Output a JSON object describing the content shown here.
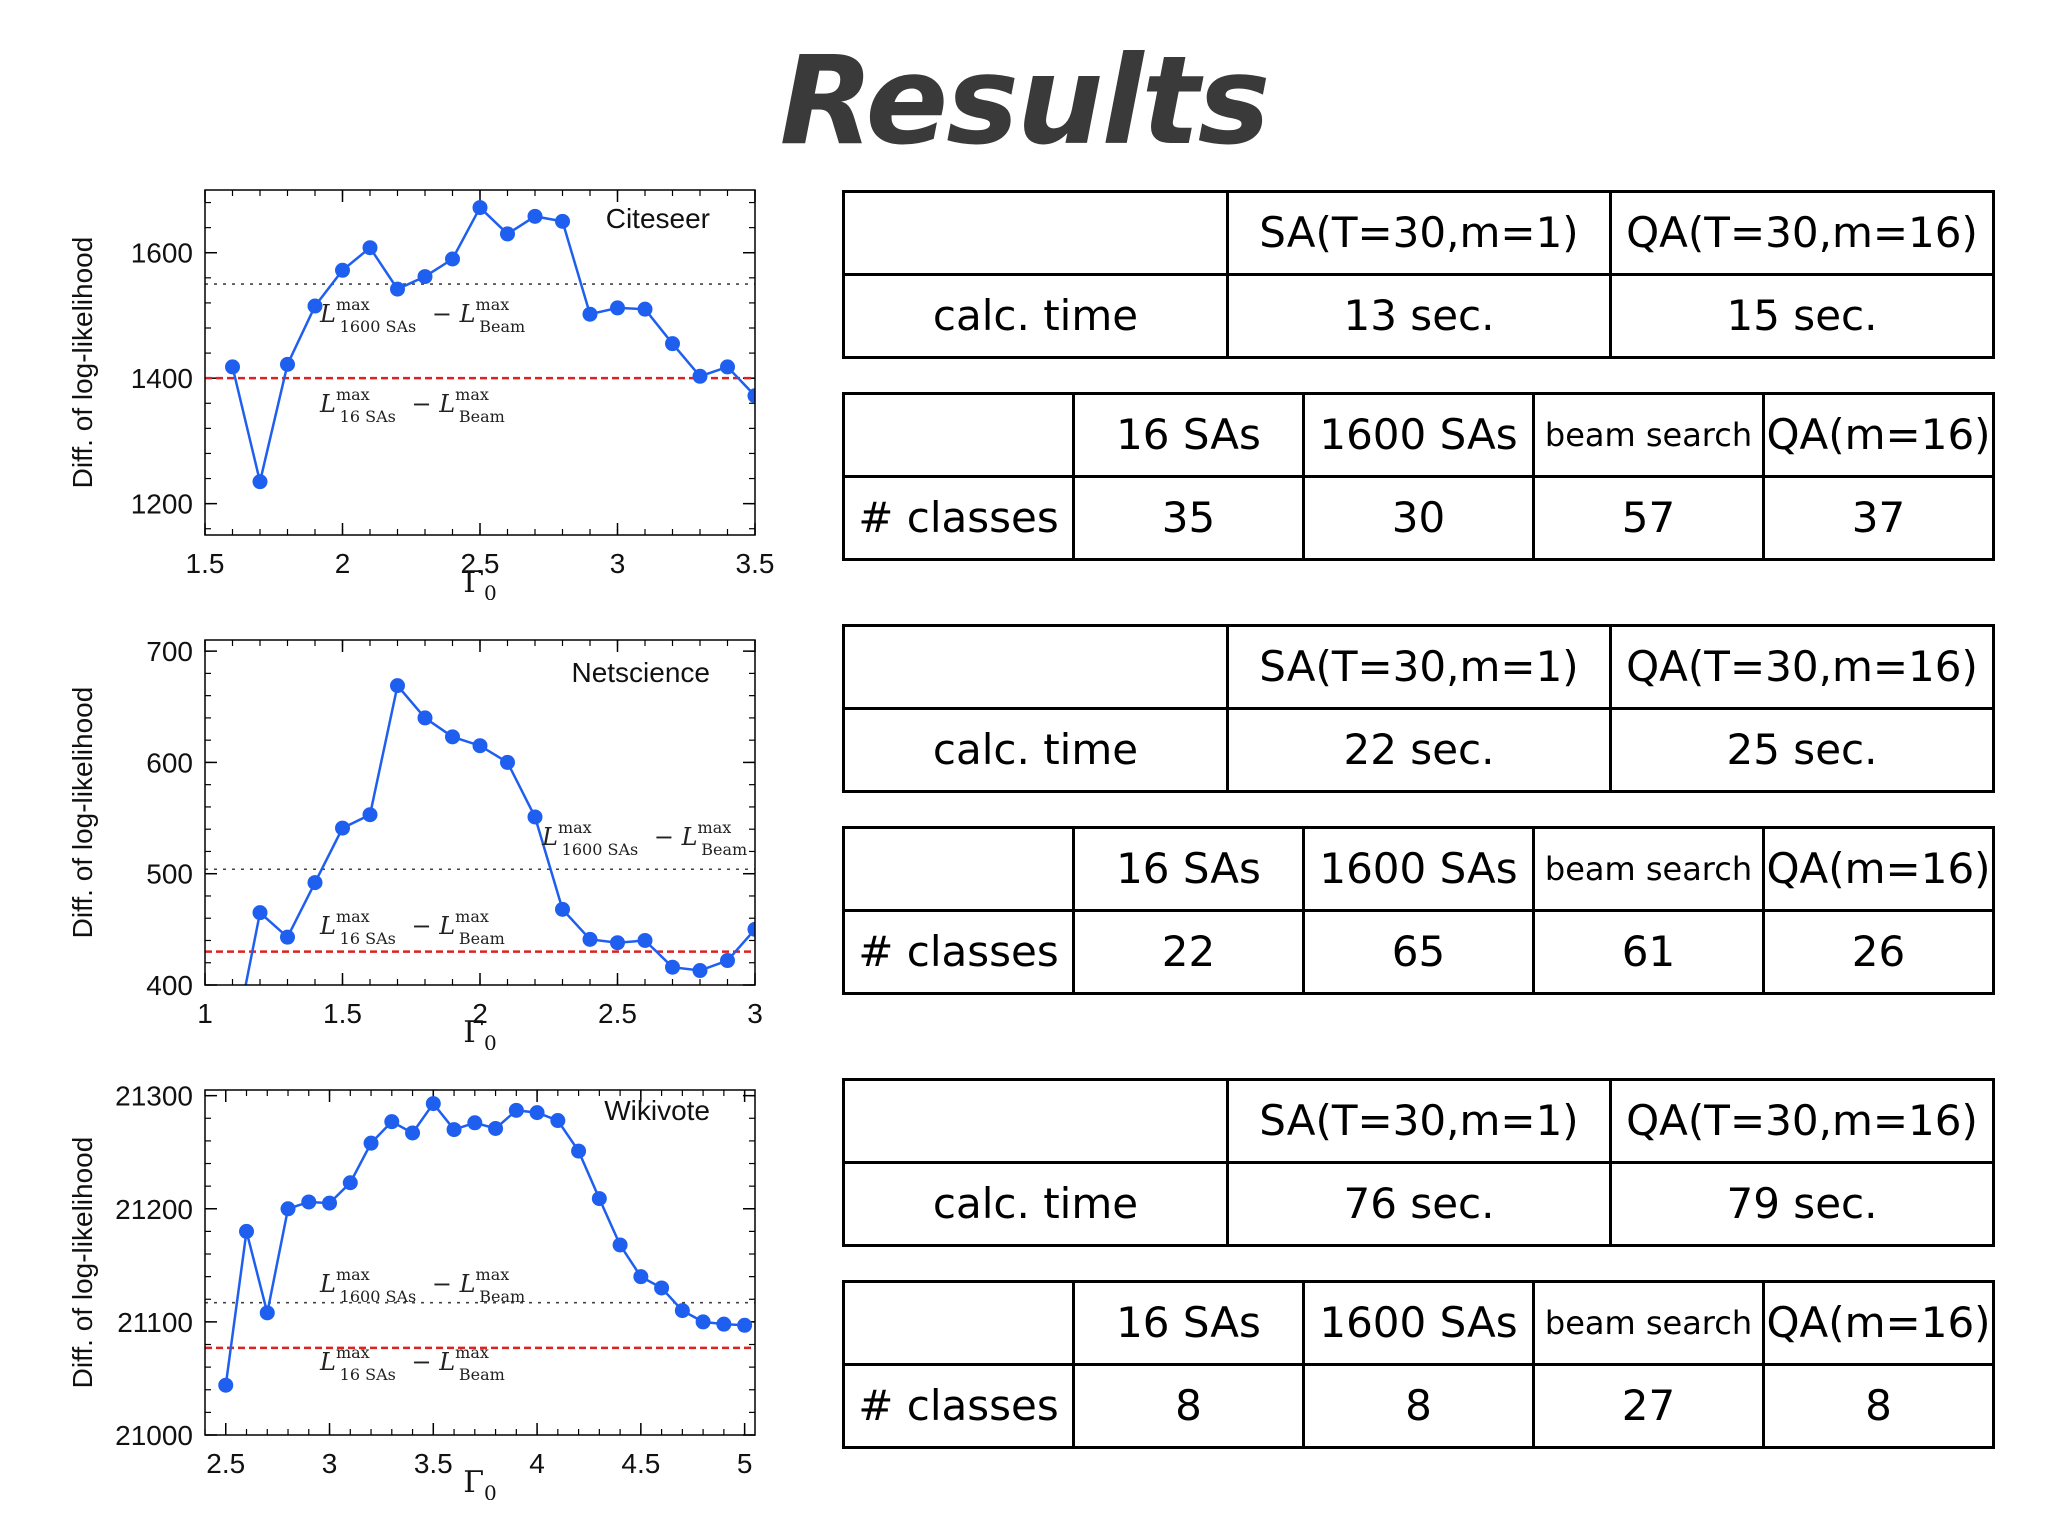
{
  "title": "Results",
  "ylabel": "Diff. of log-likelihood",
  "xlabel": "Γ",
  "xlabel_sub": "0",
  "formula_1600": {
    "L": "L",
    "sup": "max",
    "sub1": "1600 SAs",
    "minus": "−",
    "sub2": "Beam"
  },
  "formula_16": {
    "L": "L",
    "sup": "max",
    "sub1": "16 SAs",
    "minus": "−",
    "sub2": "Beam"
  },
  "colors": {
    "series": "#1f5ff0",
    "red_ref": "#dd2222",
    "black_ref": "#444444",
    "text": "#3a3a3a"
  },
  "chart_data": [
    {
      "type": "line",
      "name": "Citeseer",
      "xlim": [
        1.5,
        3.5
      ],
      "ylim": [
        1150,
        1700
      ],
      "xticks": [
        1.5,
        2,
        2.5,
        3,
        3.5
      ],
      "xtick_labels": [
        "1.5",
        "2",
        "2.5",
        "3",
        "3.5"
      ],
      "yticks": [
        1200,
        1400,
        1600
      ],
      "ytick_labels": [
        "1200",
        "1400",
        "1600"
      ],
      "ref_lines": {
        "black_dotted": 1550,
        "red_dashed": 1400
      },
      "x": [
        1.6,
        1.7,
        1.8,
        1.9,
        2.0,
        2.1,
        2.2,
        2.3,
        2.4,
        2.5,
        2.6,
        2.7,
        2.8,
        2.9,
        3.0,
        3.1,
        3.2,
        3.3,
        3.4,
        3.5
      ],
      "y": [
        1418,
        1235,
        1422,
        1515,
        1572,
        1608,
        1542,
        1562,
        1590,
        1672,
        1630,
        1658,
        1650,
        1502,
        1512,
        1510,
        1455,
        1403,
        1418,
        1372
      ]
    },
    {
      "type": "line",
      "name": "Netscience",
      "xlim": [
        1,
        3
      ],
      "ylim": [
        400,
        710
      ],
      "xticks": [
        1,
        1.5,
        2,
        2.5,
        3
      ],
      "xtick_labels": [
        "1",
        "1.5",
        "2",
        "2.5",
        "3"
      ],
      "yticks": [
        400,
        500,
        600,
        700
      ],
      "ytick_labels": [
        "400",
        "500",
        "600",
        "700"
      ],
      "ref_lines": {
        "black_dotted": 504,
        "red_dashed": 430
      },
      "off_axis_start": {
        "x": 1.1,
        "y": 340
      },
      "x": [
        1.2,
        1.3,
        1.4,
        1.5,
        1.6,
        1.7,
        1.8,
        1.9,
        2.0,
        2.1,
        2.2,
        2.3,
        2.4,
        2.5,
        2.6,
        2.7,
        2.8,
        2.9,
        3.0
      ],
      "y": [
        465,
        443,
        492,
        541,
        553,
        669,
        640,
        623,
        615,
        600,
        551,
        468,
        441,
        438,
        440,
        416,
        413,
        422,
        450
      ]
    },
    {
      "type": "line",
      "name": "Wikivote",
      "xlim": [
        2.4,
        5.05
      ],
      "ylim": [
        21000,
        21305
      ],
      "xticks": [
        2.5,
        3,
        3.5,
        4,
        4.5,
        5
      ],
      "xtick_labels": [
        "2.5",
        "3",
        "3.5",
        "4",
        "4.5",
        "5"
      ],
      "yticks": [
        21000,
        21100,
        21200,
        21300
      ],
      "ytick_labels": [
        "21000",
        "21100",
        "21200",
        "21300"
      ],
      "ref_lines": {
        "black_dotted": 21117,
        "red_dashed": 21077
      },
      "x": [
        2.5,
        2.6,
        2.7,
        2.8,
        2.9,
        3.0,
        3.1,
        3.2,
        3.3,
        3.4,
        3.5,
        3.6,
        3.7,
        3.8,
        3.9,
        4.0,
        4.1,
        4.2,
        4.3,
        4.4,
        4.5,
        4.6,
        4.7,
        4.8,
        4.9,
        5.0
      ],
      "y": [
        21044,
        21180,
        21108,
        21200,
        21206,
        21205,
        21223,
        21258,
        21277,
        21267,
        21293,
        21270,
        21276,
        21271,
        21287,
        21285,
        21278,
        21251,
        21209,
        21168,
        21140,
        21130,
        21110,
        21100,
        21098,
        21097
      ]
    }
  ],
  "tables": [
    {
      "time": {
        "header": [
          "",
          "SA(T=30,m=1)",
          "QA(T=30,m=16)"
        ],
        "row": [
          "calc. time",
          "13 sec.",
          "15 sec."
        ]
      },
      "classes": {
        "header": [
          "",
          "16 SAs",
          "1600 SAs",
          "beam search",
          "QA(m=16)"
        ],
        "row": [
          "# classes",
          "35",
          "30",
          "57",
          "37"
        ]
      }
    },
    {
      "time": {
        "header": [
          "",
          "SA(T=30,m=1)",
          "QA(T=30,m=16)"
        ],
        "row": [
          "calc. time",
          "22 sec.",
          "25 sec."
        ]
      },
      "classes": {
        "header": [
          "",
          "16 SAs",
          "1600 SAs",
          "beam search",
          "QA(m=16)"
        ],
        "row": [
          "# classes",
          "22",
          "65",
          "61",
          "26"
        ]
      }
    },
    {
      "time": {
        "header": [
          "",
          "SA(T=30,m=1)",
          "QA(T=30,m=16)"
        ],
        "row": [
          "calc. time",
          "76 sec.",
          "79 sec."
        ]
      },
      "classes": {
        "header": [
          "",
          "16 SAs",
          "1600 SAs",
          "beam search",
          "QA(m=16)"
        ],
        "row": [
          "# classes",
          "8",
          "8",
          "27",
          "8"
        ]
      }
    }
  ]
}
